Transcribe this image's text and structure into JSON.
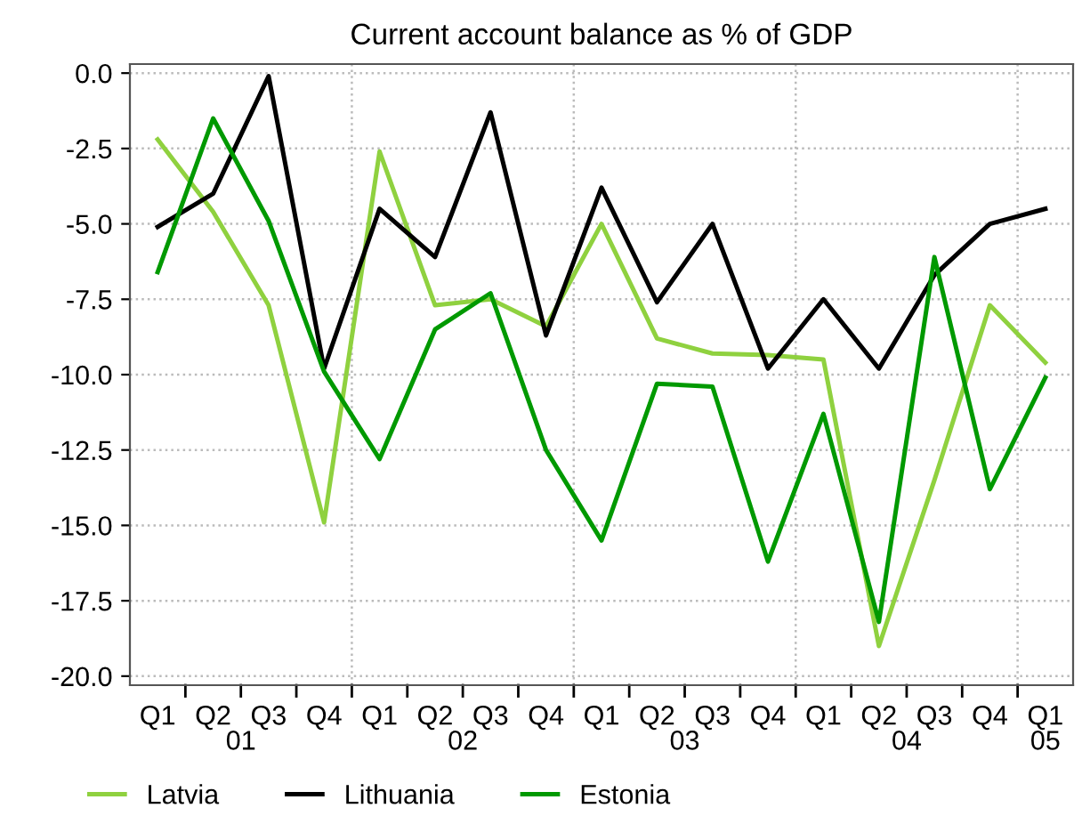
{
  "chart_data": {
    "type": "line",
    "title": "Current account balance as % of GDP",
    "categories": [
      "Q1",
      "Q2",
      "Q3",
      "Q4",
      "Q1",
      "Q2",
      "Q3",
      "Q4",
      "Q1",
      "Q2",
      "Q3",
      "Q4",
      "Q1",
      "Q2",
      "Q3",
      "Q4",
      "Q1"
    ],
    "annotations": [
      "01",
      "02",
      "03",
      "04",
      "05"
    ],
    "series": [
      {
        "name": "Latvia",
        "color": "#8fd13f",
        "values": [
          -2.2,
          -4.6,
          -7.7,
          -14.9,
          -2.6,
          -7.7,
          -7.5,
          -8.4,
          -5.0,
          -8.8,
          -9.3,
          -9.35,
          -9.5,
          -19.0,
          -13.5,
          -7.7,
          -9.6
        ]
      },
      {
        "name": "Lithuania",
        "color": "#000000",
        "values": [
          -5.1,
          -4.0,
          -0.1,
          -9.8,
          -4.5,
          -6.1,
          -1.3,
          -8.7,
          -3.8,
          -7.6,
          -5.0,
          -9.8,
          -7.5,
          -9.8,
          -6.7,
          -5.0,
          -4.5
        ]
      },
      {
        "name": "Estonia",
        "color": "#009900",
        "values": [
          -6.6,
          -1.5,
          -4.9,
          -9.9,
          -12.8,
          -8.5,
          -7.3,
          -12.5,
          -15.5,
          -10.3,
          -10.4,
          -16.2,
          -11.3,
          -18.2,
          -6.1,
          -13.8,
          -10.1
        ]
      }
    ],
    "ylim": [
      -20.3,
      0.3
    ],
    "yticks": [
      {
        "value": 0,
        "label": "0.0"
      },
      {
        "value": -2.5,
        "label": "-2.5"
      },
      {
        "value": -5,
        "label": "-5.0"
      },
      {
        "value": -7.5,
        "label": "-7.5"
      },
      {
        "value": -10,
        "label": "-10.0"
      },
      {
        "value": -12.5,
        "label": "-12.5"
      },
      {
        "value": -15,
        "label": "-15.0"
      },
      {
        "value": -17.5,
        "label": "-17.5"
      },
      {
        "value": -20,
        "label": "-20.0"
      }
    ],
    "grid": true,
    "legend": "bottom",
    "marker": "none",
    "line_style": "solid"
  }
}
